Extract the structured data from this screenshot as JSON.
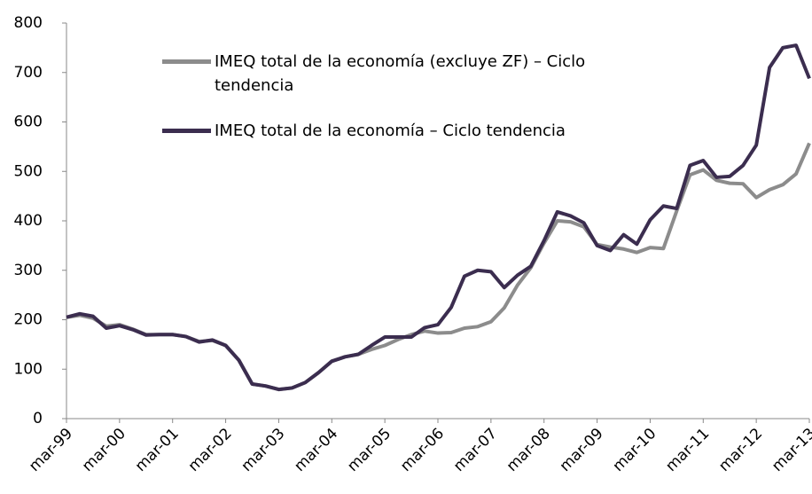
{
  "chart_data": {
    "type": "line",
    "categories": [
      "mar-99",
      null,
      null,
      null,
      "mar-00",
      null,
      null,
      null,
      "mar-01",
      null,
      null,
      null,
      "mar-02",
      null,
      null,
      null,
      "mar-03",
      null,
      null,
      null,
      "mar-04",
      null,
      null,
      null,
      "mar-05",
      null,
      null,
      null,
      "mar-06",
      null,
      null,
      null,
      "mar-07",
      null,
      null,
      null,
      "mar-08",
      null,
      null,
      null,
      "mar-09",
      null,
      null,
      null,
      "mar-10",
      null,
      null,
      null,
      "mar-11",
      null,
      null,
      null,
      "mar-12",
      null,
      null,
      null,
      "mar-13"
    ],
    "series": [
      {
        "name": "IMEQ total de la economía (excluye ZF) – Ciclo tendencia",
        "color": "#8c8c8c",
        "values": [
          205,
          209,
          203,
          187,
          190,
          181,
          170,
          170,
          170,
          166,
          156,
          158,
          148,
          118,
          70,
          66,
          59,
          62,
          73,
          93,
          116,
          125,
          130,
          140,
          148,
          160,
          170,
          177,
          173,
          174,
          183,
          186,
          196,
          224,
          270,
          305,
          355,
          400,
          398,
          388,
          352,
          347,
          343,
          336,
          346,
          344,
          420,
          493,
          503,
          482,
          476,
          475,
          447,
          463,
          473,
          495,
          557
        ]
      },
      {
        "name": "IMEQ total de la economía – Ciclo tendencia",
        "color": "#3b2d4f",
        "values": [
          205,
          212,
          207,
          183,
          188,
          180,
          169,
          170,
          170,
          166,
          155,
          159,
          148,
          118,
          70,
          66,
          59,
          62,
          73,
          93,
          116,
          125,
          130,
          148,
          165,
          165,
          165,
          184,
          190,
          225,
          288,
          300,
          297,
          265,
          290,
          308,
          360,
          418,
          410,
          396,
          350,
          340,
          372,
          353,
          402,
          430,
          425,
          512,
          522,
          488,
          490,
          512,
          553,
          710,
          750,
          755,
          688
        ]
      }
    ],
    "ylim": [
      0,
      800
    ],
    "yticks": [
      0,
      100,
      200,
      300,
      400,
      500,
      600,
      700,
      800
    ],
    "grid": false,
    "legend": "upper left"
  }
}
